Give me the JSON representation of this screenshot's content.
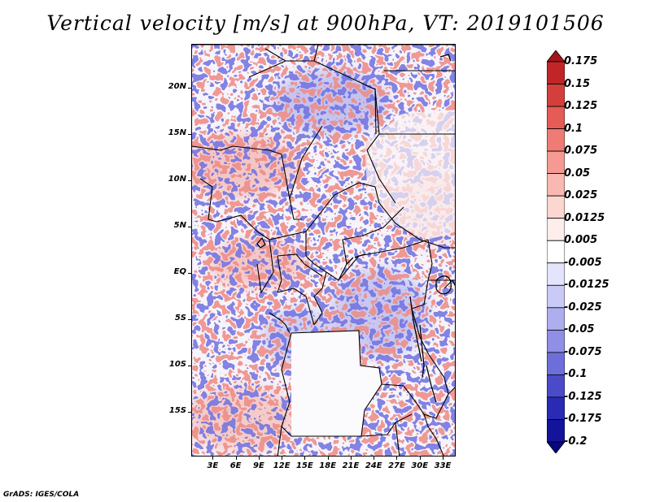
{
  "title": "Vertical velocity [m/s] at 900hPa, VT: 2019101506",
  "footer": "GrADS: IGES/COLA",
  "map": {
    "lat_ticks": [
      {
        "label": "20N",
        "value": 20
      },
      {
        "label": "15N",
        "value": 15
      },
      {
        "label": "10N",
        "value": 10
      },
      {
        "label": "5N",
        "value": 5
      },
      {
        "label": "EQ",
        "value": 0
      },
      {
        "label": "5S",
        "value": -5
      },
      {
        "label": "10S",
        "value": -10
      },
      {
        "label": "15S",
        "value": -15
      }
    ],
    "lon_ticks": [
      {
        "label": "3E",
        "value": 3
      },
      {
        "label": "6E",
        "value": 6
      },
      {
        "label": "9E",
        "value": 9
      },
      {
        "label": "12E",
        "value": 12
      },
      {
        "label": "15E",
        "value": 15
      },
      {
        "label": "18E",
        "value": 18
      },
      {
        "label": "21E",
        "value": 21
      },
      {
        "label": "24E",
        "value": 24
      },
      {
        "label": "27E",
        "value": 27
      },
      {
        "label": "30E",
        "value": 30
      },
      {
        "label": "33E",
        "value": 33
      }
    ],
    "lat_range": [
      -19.8,
      24.7
    ],
    "lon_range": [
      0.2,
      34.7
    ]
  },
  "colorbar": {
    "labels": [
      "0.175",
      "0.15",
      "0.125",
      "0.1",
      "0.075",
      "0.05",
      "0.025",
      "0.0125",
      "0.005",
      "-0.005",
      "-0.0125",
      "-0.025",
      "-0.05",
      "-0.075",
      "-0.1",
      "-0.125",
      "-0.175",
      "-0.2"
    ],
    "colors": [
      "#a4141a",
      "#c22527",
      "#d53f3b",
      "#e45c55",
      "#ee7c74",
      "#f49a92",
      "#f9b8b1",
      "#fcd6d1",
      "#fdeeec",
      "#ffffff",
      "#e4e4fc",
      "#cacaf6",
      "#aeaeef",
      "#8f8fe6",
      "#6e6edb",
      "#4b4bc9",
      "#2a2ab4",
      "#14149b",
      "#070781"
    ]
  }
}
